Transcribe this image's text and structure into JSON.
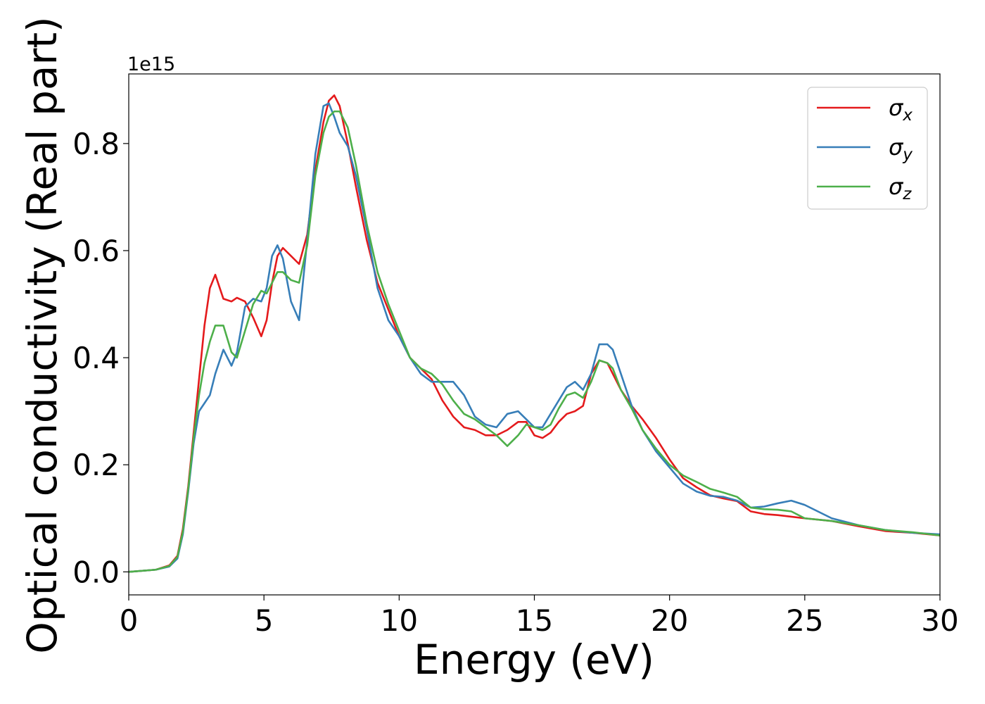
{
  "chart_data": {
    "type": "line",
    "xlabel": "Energy (eV)",
    "ylabel": "Optical conductivity (Real part)",
    "offset_text": "1e15",
    "y_scale": 1000000000000000.0,
    "xlim": [
      0,
      30
    ],
    "ylim": [
      -0.043,
      0.93
    ],
    "x_ticks": [
      0,
      5,
      10,
      15,
      20,
      25,
      30
    ],
    "x_tick_labels": [
      "0",
      "5",
      "10",
      "15",
      "20",
      "25",
      "30"
    ],
    "y_ticks": [
      0.0,
      0.2,
      0.4,
      0.6,
      0.8
    ],
    "y_tick_labels": [
      "0.0",
      "0.2",
      "0.4",
      "0.6",
      "0.8"
    ],
    "grid": false,
    "legend_position": "top-right",
    "series": [
      {
        "name": "σx",
        "symbol": "σ",
        "subscript": "x",
        "color": "#e41a1c",
        "x": [
          0,
          1,
          1.5,
          1.8,
          2.0,
          2.2,
          2.4,
          2.6,
          2.8,
          3.0,
          3.2,
          3.5,
          3.8,
          4.0,
          4.3,
          4.6,
          4.9,
          5.1,
          5.3,
          5.5,
          5.7,
          6.0,
          6.3,
          6.6,
          6.9,
          7.2,
          7.4,
          7.6,
          7.8,
          8.1,
          8.4,
          8.8,
          9.2,
          9.6,
          10.0,
          10.4,
          10.8,
          11.2,
          11.6,
          12.0,
          12.4,
          12.8,
          13.2,
          13.6,
          14.0,
          14.4,
          14.7,
          15.0,
          15.3,
          15.6,
          15.9,
          16.2,
          16.5,
          16.8,
          17.1,
          17.4,
          17.7,
          17.9,
          18.2,
          18.6,
          19.0,
          19.5,
          20.0,
          20.5,
          21.0,
          21.5,
          22.0,
          22.5,
          23.0,
          23.5,
          24.0,
          24.5,
          25.0,
          26.0,
          27.0,
          28.0,
          29.0,
          30.0
        ],
        "y": [
          0.0,
          0.004,
          0.012,
          0.03,
          0.08,
          0.16,
          0.26,
          0.36,
          0.46,
          0.53,
          0.555,
          0.51,
          0.505,
          0.512,
          0.505,
          0.475,
          0.44,
          0.47,
          0.54,
          0.59,
          0.605,
          0.59,
          0.575,
          0.63,
          0.75,
          0.84,
          0.88,
          0.89,
          0.87,
          0.8,
          0.72,
          0.62,
          0.54,
          0.49,
          0.44,
          0.4,
          0.38,
          0.36,
          0.32,
          0.29,
          0.27,
          0.265,
          0.255,
          0.255,
          0.265,
          0.28,
          0.28,
          0.255,
          0.25,
          0.26,
          0.28,
          0.295,
          0.3,
          0.31,
          0.37,
          0.395,
          0.39,
          0.37,
          0.34,
          0.31,
          0.285,
          0.25,
          0.21,
          0.175,
          0.158,
          0.143,
          0.137,
          0.132,
          0.113,
          0.108,
          0.106,
          0.103,
          0.1,
          0.095,
          0.085,
          0.076,
          0.073,
          0.068
        ]
      },
      {
        "name": "σy",
        "symbol": "σ",
        "subscript": "y",
        "color": "#377eb8",
        "x": [
          0,
          1,
          1.5,
          1.8,
          2.0,
          2.2,
          2.4,
          2.6,
          2.8,
          3.0,
          3.2,
          3.5,
          3.8,
          4.0,
          4.3,
          4.6,
          4.9,
          5.1,
          5.3,
          5.5,
          5.7,
          6.0,
          6.3,
          6.6,
          6.9,
          7.2,
          7.4,
          7.6,
          7.8,
          8.1,
          8.4,
          8.8,
          9.2,
          9.6,
          10.0,
          10.4,
          10.8,
          11.2,
          11.6,
          12.0,
          12.4,
          12.8,
          13.2,
          13.6,
          14.0,
          14.4,
          14.7,
          15.0,
          15.3,
          15.6,
          15.9,
          16.2,
          16.5,
          16.8,
          17.1,
          17.4,
          17.7,
          17.9,
          18.2,
          18.6,
          19.0,
          19.5,
          20.0,
          20.5,
          21.0,
          21.5,
          22.0,
          22.5,
          23.0,
          23.5,
          24.0,
          24.5,
          25.0,
          26.0,
          27.0,
          28.0,
          29.0,
          30.0
        ],
        "y": [
          0.0,
          0.004,
          0.01,
          0.025,
          0.07,
          0.15,
          0.24,
          0.3,
          0.315,
          0.33,
          0.37,
          0.415,
          0.385,
          0.41,
          0.495,
          0.51,
          0.505,
          0.53,
          0.59,
          0.61,
          0.585,
          0.505,
          0.47,
          0.62,
          0.78,
          0.87,
          0.875,
          0.85,
          0.82,
          0.795,
          0.74,
          0.64,
          0.53,
          0.47,
          0.44,
          0.4,
          0.37,
          0.355,
          0.355,
          0.355,
          0.33,
          0.29,
          0.275,
          0.27,
          0.295,
          0.3,
          0.285,
          0.27,
          0.27,
          0.295,
          0.32,
          0.345,
          0.355,
          0.34,
          0.37,
          0.425,
          0.425,
          0.415,
          0.37,
          0.31,
          0.265,
          0.225,
          0.195,
          0.165,
          0.15,
          0.142,
          0.14,
          0.133,
          0.12,
          0.122,
          0.128,
          0.133,
          0.125,
          0.1,
          0.087,
          0.078,
          0.073,
          0.07
        ]
      },
      {
        "name": "σz",
        "symbol": "σ",
        "subscript": "z",
        "color": "#4daf4a",
        "x": [
          0,
          1,
          1.5,
          1.8,
          2.0,
          2.2,
          2.4,
          2.6,
          2.8,
          3.0,
          3.2,
          3.5,
          3.8,
          4.0,
          4.3,
          4.6,
          4.9,
          5.1,
          5.3,
          5.5,
          5.7,
          6.0,
          6.3,
          6.6,
          6.9,
          7.2,
          7.4,
          7.6,
          7.8,
          8.1,
          8.4,
          8.8,
          9.2,
          9.6,
          10.0,
          10.4,
          10.8,
          11.2,
          11.6,
          12.0,
          12.4,
          12.8,
          13.2,
          13.6,
          14.0,
          14.4,
          14.7,
          15.0,
          15.3,
          15.6,
          15.9,
          16.2,
          16.5,
          16.8,
          17.1,
          17.4,
          17.7,
          17.9,
          18.2,
          18.6,
          19.0,
          19.5,
          20.0,
          20.5,
          21.0,
          21.5,
          22.0,
          22.5,
          23.0,
          23.5,
          24.0,
          24.5,
          25.0,
          26.0,
          27.0,
          28.0,
          29.0,
          30.0
        ],
        "y": [
          0.0,
          0.004,
          0.011,
          0.028,
          0.075,
          0.155,
          0.25,
          0.33,
          0.39,
          0.43,
          0.46,
          0.46,
          0.41,
          0.4,
          0.45,
          0.5,
          0.525,
          0.52,
          0.54,
          0.56,
          0.56,
          0.545,
          0.54,
          0.61,
          0.74,
          0.82,
          0.85,
          0.86,
          0.86,
          0.83,
          0.76,
          0.65,
          0.56,
          0.5,
          0.45,
          0.4,
          0.38,
          0.37,
          0.35,
          0.32,
          0.295,
          0.285,
          0.27,
          0.255,
          0.235,
          0.255,
          0.275,
          0.27,
          0.265,
          0.275,
          0.305,
          0.33,
          0.335,
          0.325,
          0.355,
          0.395,
          0.39,
          0.38,
          0.34,
          0.305,
          0.265,
          0.23,
          0.2,
          0.18,
          0.168,
          0.155,
          0.148,
          0.14,
          0.12,
          0.117,
          0.116,
          0.113,
          0.1,
          0.095,
          0.087,
          0.078,
          0.074,
          0.068
        ]
      }
    ]
  }
}
